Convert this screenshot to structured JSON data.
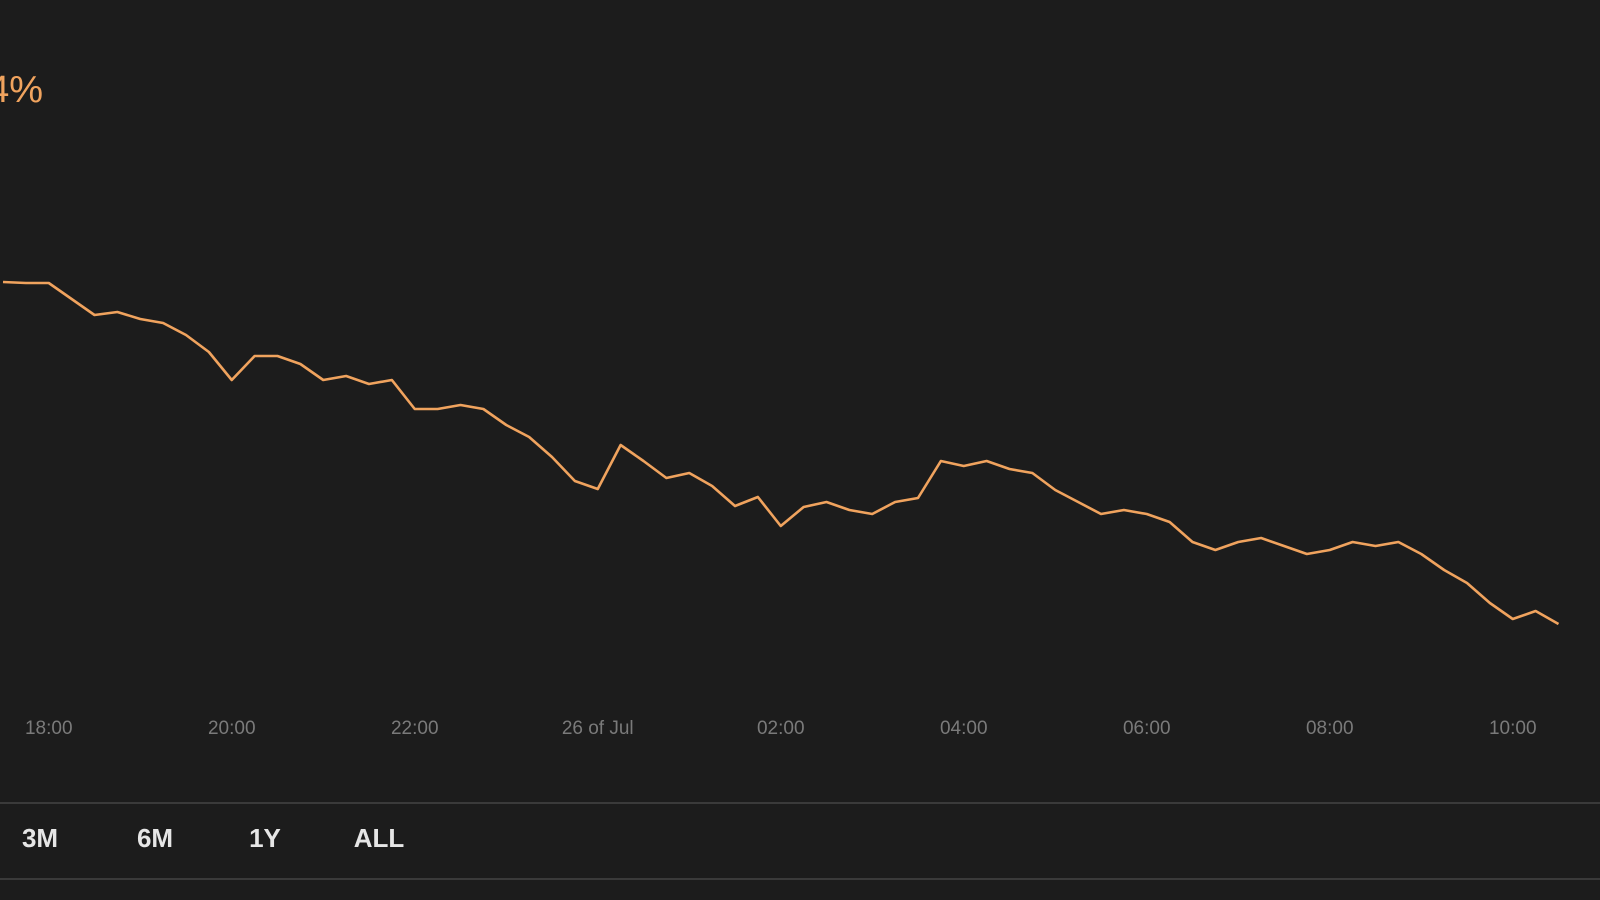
{
  "chart_data": {
    "type": "line",
    "change": "4%",
    "categories": [
      null,
      null,
      "18:00",
      null,
      null,
      null,
      null,
      null,
      null,
      null,
      "20:00",
      null,
      null,
      null,
      null,
      null,
      null,
      null,
      "22:00",
      null,
      null,
      null,
      null,
      null,
      null,
      null,
      "26 of Jul",
      null,
      null,
      null,
      null,
      null,
      null,
      null,
      "02:00",
      null,
      null,
      null,
      null,
      null,
      null,
      null,
      "04:00",
      null,
      null,
      null,
      null,
      null,
      null,
      null,
      "06:00",
      null,
      null,
      null,
      null,
      null,
      null,
      null,
      "08:00",
      null,
      null,
      null,
      null,
      null,
      null,
      null,
      "10:00",
      null,
      null
    ],
    "values": [
      418,
      417,
      417,
      401,
      385,
      388,
      381,
      377,
      365,
      348,
      320,
      344,
      344,
      336,
      320,
      324,
      316,
      320,
      291,
      291,
      295,
      291,
      275,
      263,
      243,
      219,
      211,
      255,
      239,
      222,
      227,
      214,
      194,
      203,
      174,
      193,
      198,
      190,
      186,
      198,
      202,
      239,
      234,
      239,
      231,
      227,
      210,
      198,
      186,
      190,
      186,
      178,
      158,
      150,
      158,
      162,
      154,
      146,
      150,
      158,
      154,
      158,
      146,
      130,
      117,
      97,
      81,
      89,
      76
    ],
    "color": "#f0a35e",
    "ylim": [
      0,
      700
    ]
  },
  "range_buttons": [
    "3M",
    "6M",
    "1Y",
    "ALL"
  ]
}
